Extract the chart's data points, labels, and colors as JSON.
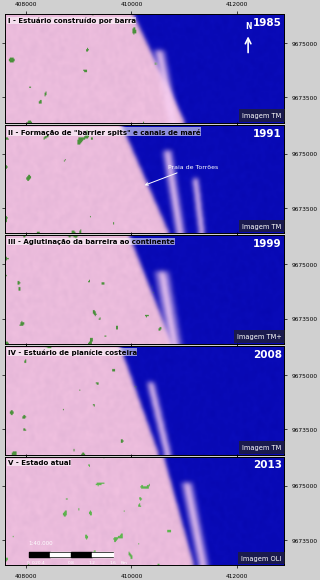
{
  "panels": [
    {
      "label": "I - Estuário construído por barra",
      "year": "1985",
      "sensor": "Imagem TM",
      "has_north": true,
      "annotation": null,
      "has_scale": false
    },
    {
      "label": "II - Formação de \"barrier spits\" e canais de maré",
      "year": "1991",
      "sensor": "Imagem TM",
      "has_north": false,
      "annotation": "Praia de Torrões",
      "has_scale": false
    },
    {
      "label": "III - Aglutinação da barreira ao continente",
      "year": "1999",
      "sensor": "Imagem TM+",
      "has_north": false,
      "annotation": null,
      "has_scale": false
    },
    {
      "label": "IV - Estuário de planície costeira",
      "year": "2008",
      "sensor": "Imagem TM",
      "has_north": false,
      "annotation": null,
      "has_scale": false
    },
    {
      "label": "V - Estado atual",
      "year": "2013",
      "sensor": "Imagem OLI",
      "has_north": false,
      "annotation": null,
      "has_scale": true
    }
  ],
  "xtick_labels": [
    "408000",
    "410000",
    "412000"
  ],
  "ytick_labels": [
    "9673500",
    "9675000"
  ],
  "fig_bg": "#d0d0d0",
  "label_fontsize": 5.0,
  "year_fontsize": 7.5,
  "sensor_fontsize": 4.8,
  "tick_fontsize": 4.2,
  "annotation_fontsize": 4.5
}
